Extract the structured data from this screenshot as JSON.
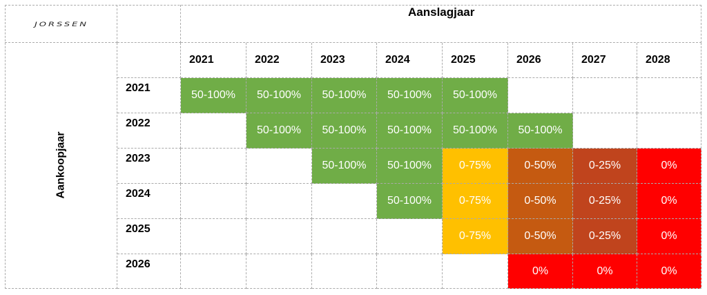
{
  "logo": {
    "text": "JORSSEN"
  },
  "header": {
    "title": "Aanslagjaar"
  },
  "side": {
    "label": "Aankoopjaar"
  },
  "colors": {
    "green": "#70ad47",
    "yellow": "#ffc000",
    "orange": "#c55a11",
    "brown": "#c0441d",
    "red": "#ff0000"
  },
  "columns": [
    "2021",
    "2022",
    "2023",
    "2024",
    "2025",
    "2026",
    "2027",
    "2028"
  ],
  "rows": [
    {
      "year": "2021",
      "cells": [
        {
          "text": "50-100%",
          "color": "green"
        },
        {
          "text": "50-100%",
          "color": "green"
        },
        {
          "text": "50-100%",
          "color": "green"
        },
        {
          "text": "50-100%",
          "color": "green"
        },
        {
          "text": "50-100%",
          "color": "green"
        },
        {
          "text": "",
          "color": ""
        },
        {
          "text": "",
          "color": ""
        },
        {
          "text": "",
          "color": ""
        }
      ]
    },
    {
      "year": "2022",
      "cells": [
        {
          "text": "",
          "color": ""
        },
        {
          "text": "50-100%",
          "color": "green"
        },
        {
          "text": "50-100%",
          "color": "green"
        },
        {
          "text": "50-100%",
          "color": "green"
        },
        {
          "text": "50-100%",
          "color": "green"
        },
        {
          "text": "50-100%",
          "color": "green"
        },
        {
          "text": "",
          "color": ""
        },
        {
          "text": "",
          "color": ""
        }
      ]
    },
    {
      "year": "2023",
      "cells": [
        {
          "text": "",
          "color": ""
        },
        {
          "text": "",
          "color": ""
        },
        {
          "text": "50-100%",
          "color": "green"
        },
        {
          "text": "50-100%",
          "color": "green"
        },
        {
          "text": "0-75%",
          "color": "yellow"
        },
        {
          "text": "0-50%",
          "color": "orange"
        },
        {
          "text": "0-25%",
          "color": "brown"
        },
        {
          "text": "0%",
          "color": "red"
        }
      ]
    },
    {
      "year": "2024",
      "cells": [
        {
          "text": "",
          "color": ""
        },
        {
          "text": "",
          "color": ""
        },
        {
          "text": "",
          "color": ""
        },
        {
          "text": "50-100%",
          "color": "green"
        },
        {
          "text": "0-75%",
          "color": "yellow"
        },
        {
          "text": "0-50%",
          "color": "orange"
        },
        {
          "text": "0-25%",
          "color": "brown"
        },
        {
          "text": "0%",
          "color": "red"
        }
      ]
    },
    {
      "year": "2025",
      "cells": [
        {
          "text": "",
          "color": ""
        },
        {
          "text": "",
          "color": ""
        },
        {
          "text": "",
          "color": ""
        },
        {
          "text": "",
          "color": ""
        },
        {
          "text": "0-75%",
          "color": "yellow"
        },
        {
          "text": "0-50%",
          "color": "orange"
        },
        {
          "text": "0-25%",
          "color": "brown"
        },
        {
          "text": "0%",
          "color": "red"
        }
      ]
    },
    {
      "year": "2026",
      "cells": [
        {
          "text": "",
          "color": ""
        },
        {
          "text": "",
          "color": ""
        },
        {
          "text": "",
          "color": ""
        },
        {
          "text": "",
          "color": ""
        },
        {
          "text": "",
          "color": ""
        },
        {
          "text": "0%",
          "color": "red"
        },
        {
          "text": "0%",
          "color": "red"
        },
        {
          "text": "0%",
          "color": "red"
        }
      ]
    }
  ]
}
